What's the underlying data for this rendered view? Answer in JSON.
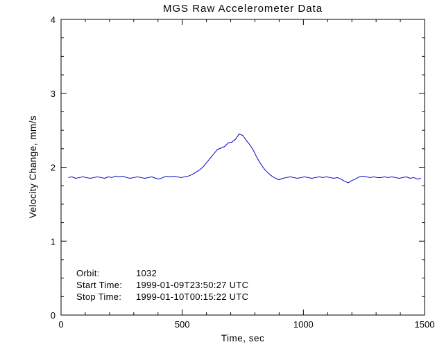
{
  "chart_data": {
    "type": "line",
    "title": "MGS Raw Accelerometer Data",
    "xlabel": "Time, sec",
    "ylabel": "Velocity Change, mm/s",
    "xlim": [
      0,
      1500
    ],
    "ylim": [
      0,
      4
    ],
    "x_ticks": [
      0,
      500,
      1000,
      1500
    ],
    "x_tick_labels": [
      "0",
      "500",
      "1000",
      "1500"
    ],
    "y_ticks": [
      0,
      1,
      2,
      3,
      4
    ],
    "y_tick_labels": [
      "0",
      "1",
      "2",
      "3",
      "4"
    ],
    "x_minor_step": 100,
    "y_minor_step": 0.25,
    "grid": false,
    "legend": "none",
    "line_color": "#0000cc",
    "axis_color": "#000000",
    "background_color": "#ffffff",
    "series": [
      {
        "name": "velocity-change",
        "points": [
          [
            30,
            1.86
          ],
          [
            45,
            1.87
          ],
          [
            60,
            1.85
          ],
          [
            75,
            1.86
          ],
          [
            90,
            1.87
          ],
          [
            105,
            1.86
          ],
          [
            120,
            1.85
          ],
          [
            135,
            1.86
          ],
          [
            150,
            1.87
          ],
          [
            165,
            1.86
          ],
          [
            180,
            1.85
          ],
          [
            195,
            1.87
          ],
          [
            210,
            1.86
          ],
          [
            225,
            1.88
          ],
          [
            240,
            1.87
          ],
          [
            255,
            1.88
          ],
          [
            270,
            1.86
          ],
          [
            285,
            1.85
          ],
          [
            300,
            1.86
          ],
          [
            315,
            1.87
          ],
          [
            330,
            1.86
          ],
          [
            345,
            1.85
          ],
          [
            360,
            1.86
          ],
          [
            375,
            1.87
          ],
          [
            390,
            1.85
          ],
          [
            405,
            1.84
          ],
          [
            420,
            1.86
          ],
          [
            435,
            1.88
          ],
          [
            450,
            1.87
          ],
          [
            465,
            1.88
          ],
          [
            480,
            1.87
          ],
          [
            495,
            1.86
          ],
          [
            510,
            1.87
          ],
          [
            525,
            1.88
          ],
          [
            540,
            1.9
          ],
          [
            555,
            1.93
          ],
          [
            570,
            1.96
          ],
          [
            585,
            2.0
          ],
          [
            600,
            2.06
          ],
          [
            615,
            2.12
          ],
          [
            630,
            2.18
          ],
          [
            645,
            2.24
          ],
          [
            660,
            2.26
          ],
          [
            675,
            2.28
          ],
          [
            690,
            2.33
          ],
          [
            705,
            2.34
          ],
          [
            720,
            2.38
          ],
          [
            735,
            2.45
          ],
          [
            750,
            2.43
          ],
          [
            765,
            2.36
          ],
          [
            780,
            2.3
          ],
          [
            795,
            2.22
          ],
          [
            810,
            2.12
          ],
          [
            825,
            2.04
          ],
          [
            840,
            1.97
          ],
          [
            855,
            1.92
          ],
          [
            870,
            1.88
          ],
          [
            885,
            1.85
          ],
          [
            900,
            1.83
          ],
          [
            915,
            1.85
          ],
          [
            930,
            1.86
          ],
          [
            945,
            1.87
          ],
          [
            960,
            1.86
          ],
          [
            975,
            1.85
          ],
          [
            990,
            1.86
          ],
          [
            1005,
            1.87
          ],
          [
            1020,
            1.86
          ],
          [
            1035,
            1.85
          ],
          [
            1050,
            1.86
          ],
          [
            1065,
            1.87
          ],
          [
            1080,
            1.86
          ],
          [
            1095,
            1.87
          ],
          [
            1110,
            1.86
          ],
          [
            1125,
            1.85
          ],
          [
            1140,
            1.86
          ],
          [
            1155,
            1.84
          ],
          [
            1170,
            1.81
          ],
          [
            1185,
            1.79
          ],
          [
            1200,
            1.82
          ],
          [
            1215,
            1.84
          ],
          [
            1230,
            1.87
          ],
          [
            1245,
            1.88
          ],
          [
            1260,
            1.87
          ],
          [
            1275,
            1.86
          ],
          [
            1290,
            1.87
          ],
          [
            1305,
            1.86
          ],
          [
            1320,
            1.86
          ],
          [
            1335,
            1.87
          ],
          [
            1350,
            1.86
          ],
          [
            1365,
            1.87
          ],
          [
            1380,
            1.86
          ],
          [
            1395,
            1.85
          ],
          [
            1410,
            1.86
          ],
          [
            1425,
            1.87
          ],
          [
            1440,
            1.85
          ],
          [
            1455,
            1.86
          ],
          [
            1470,
            1.84
          ],
          [
            1485,
            1.85
          ]
        ]
      }
    ],
    "annotations": [
      {
        "label": "Orbit:",
        "value": "1032"
      },
      {
        "label": "Start Time:",
        "value": "1999-01-09T23:50:27 UTC"
      },
      {
        "label": "Stop Time:",
        "value": "1999-01-10T00:15:22 UTC"
      }
    ]
  }
}
